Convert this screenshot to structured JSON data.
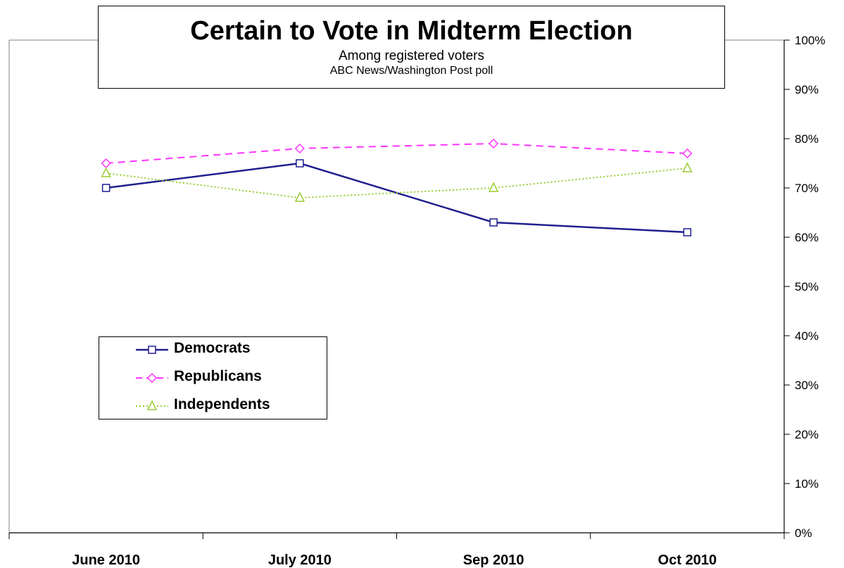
{
  "chart_data": {
    "type": "line",
    "title": "Certain to Vote in Midterm Election",
    "subtitle": "Among registered voters",
    "source": "ABC News/Washington Post poll",
    "categories": [
      "June 2010",
      "July 2010",
      "Sep 2010",
      "Oct 2010"
    ],
    "ylim": [
      0,
      100
    ],
    "yticks": [
      "100%",
      "90%",
      "80%",
      "70%",
      "60%",
      "50%",
      "40%",
      "30%",
      "20%",
      "10%",
      "0%"
    ],
    "y_axis_position": "right",
    "grid": false,
    "legend_position": "lower-left",
    "series": [
      {
        "name": "Democrats",
        "values": [
          70,
          75,
          63,
          61
        ],
        "color": "#1f1f8f",
        "dash": "solid",
        "marker": "square"
      },
      {
        "name": "Republicans",
        "values": [
          75,
          78,
          79,
          77
        ],
        "color": "#ff33ff",
        "dash": "dashed",
        "marker": "diamond"
      },
      {
        "name": "Independents",
        "values": [
          73,
          68,
          70,
          74
        ],
        "color": "#99cc33",
        "dash": "dotted",
        "marker": "triangle"
      }
    ]
  }
}
